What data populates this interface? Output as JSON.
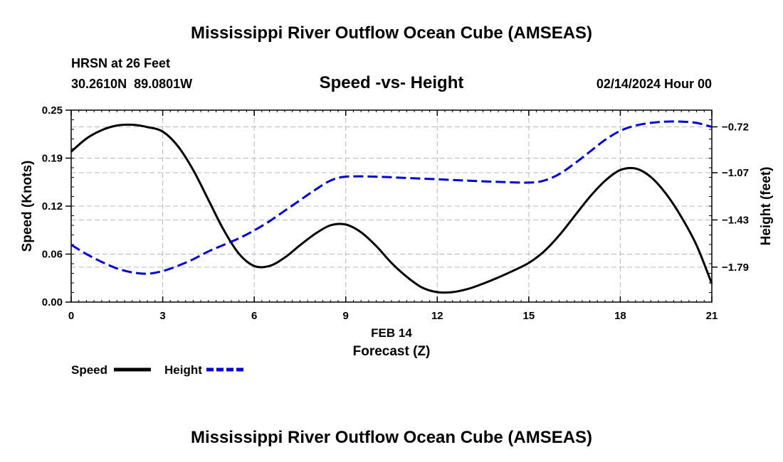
{
  "header": {
    "title": "Mississippi River Outflow Ocean Cube (AMSEAS)",
    "station_line": "HRSN at 26 Feet",
    "coords_line": "30.2610N  89.0801W",
    "subtitle": "Speed -vs- Height",
    "date_line": "02/14/2024 Hour 00"
  },
  "footer": {
    "title": "Mississippi River Outflow Ocean Cube (AMSEAS)"
  },
  "chart_data": {
    "type": "line",
    "xlabel_date": "FEB 14",
    "xlabel": "Forecast (Z)",
    "ylabel_left": "Speed (Knots)",
    "ylabel_right": "Height (feet)",
    "x_ticks": [
      0,
      3,
      6,
      9,
      12,
      15,
      18,
      21
    ],
    "x_tick_labels": [
      "0",
      "3",
      "6",
      "9",
      "12",
      "15",
      "18",
      "21"
    ],
    "xlim": [
      0,
      21
    ],
    "ylim_left": [
      0,
      0.25
    ],
    "y_left_ticks": [
      0,
      0.0625,
      0.125,
      0.1875,
      0.25
    ],
    "y_left_tick_labels": [
      "0.00",
      "0.06",
      "0.12",
      "0.19",
      "0.25"
    ],
    "ylim_right": [
      -2.0565,
      -0.5928
    ],
    "y_right_ticks": [
      -0.72,
      -1.07,
      -1.43,
      -1.79
    ],
    "y_right_tick_labels": [
      "-0.72",
      "-1.07",
      "-1.43",
      "-1.79"
    ],
    "grid": true,
    "legend_position": "bottom-left",
    "series": [
      {
        "name": "Speed",
        "axis": "left",
        "color": "#000000",
        "style": "solid",
        "x": [
          0,
          0.5,
          1,
          1.5,
          2,
          2.5,
          3,
          3.5,
          4,
          4.5,
          5,
          5.5,
          6,
          6.5,
          7,
          7.5,
          8,
          8.5,
          9,
          9.5,
          10,
          10.5,
          11,
          11.5,
          12,
          12.5,
          13,
          13.5,
          14,
          14.5,
          15,
          15.5,
          16,
          16.5,
          17,
          17.5,
          18,
          18.5,
          19,
          19.5,
          20,
          20.5,
          21
        ],
        "values": [
          0.196,
          0.213,
          0.224,
          0.23,
          0.231,
          0.228,
          0.222,
          0.203,
          0.172,
          0.133,
          0.094,
          0.063,
          0.047,
          0.047,
          0.058,
          0.074,
          0.089,
          0.1,
          0.101,
          0.091,
          0.073,
          0.051,
          0.033,
          0.019,
          0.013,
          0.013,
          0.017,
          0.024,
          0.032,
          0.041,
          0.051,
          0.066,
          0.087,
          0.112,
          0.137,
          0.158,
          0.172,
          0.174,
          0.163,
          0.141,
          0.111,
          0.074,
          0.024
        ]
      },
      {
        "name": "Height",
        "axis": "right",
        "color": "#0000cc",
        "style": "dashed",
        "x": [
          0,
          0.5,
          1,
          1.5,
          2,
          2.5,
          3,
          3.5,
          4,
          4.5,
          5,
          5.5,
          6,
          6.5,
          7,
          7.5,
          8,
          8.5,
          9,
          10,
          11,
          12,
          13,
          14,
          15,
          15.5,
          16,
          16.5,
          17,
          17.5,
          18,
          18.5,
          19,
          19.5,
          20,
          20.5,
          21
        ],
        "values": [
          -1.62,
          -1.69,
          -1.75,
          -1.8,
          -1.83,
          -1.84,
          -1.82,
          -1.78,
          -1.73,
          -1.67,
          -1.62,
          -1.57,
          -1.51,
          -1.44,
          -1.36,
          -1.28,
          -1.2,
          -1.13,
          -1.1,
          -1.1,
          -1.11,
          -1.12,
          -1.13,
          -1.14,
          -1.145,
          -1.13,
          -1.08,
          -1.0,
          -0.91,
          -0.82,
          -0.75,
          -0.71,
          -0.69,
          -0.68,
          -0.68,
          -0.69,
          -0.72
        ]
      }
    ],
    "legend": [
      {
        "label": "Speed",
        "color": "#000000",
        "style": "solid"
      },
      {
        "label": "Height",
        "color": "#0000cc",
        "style": "dashed"
      }
    ]
  }
}
